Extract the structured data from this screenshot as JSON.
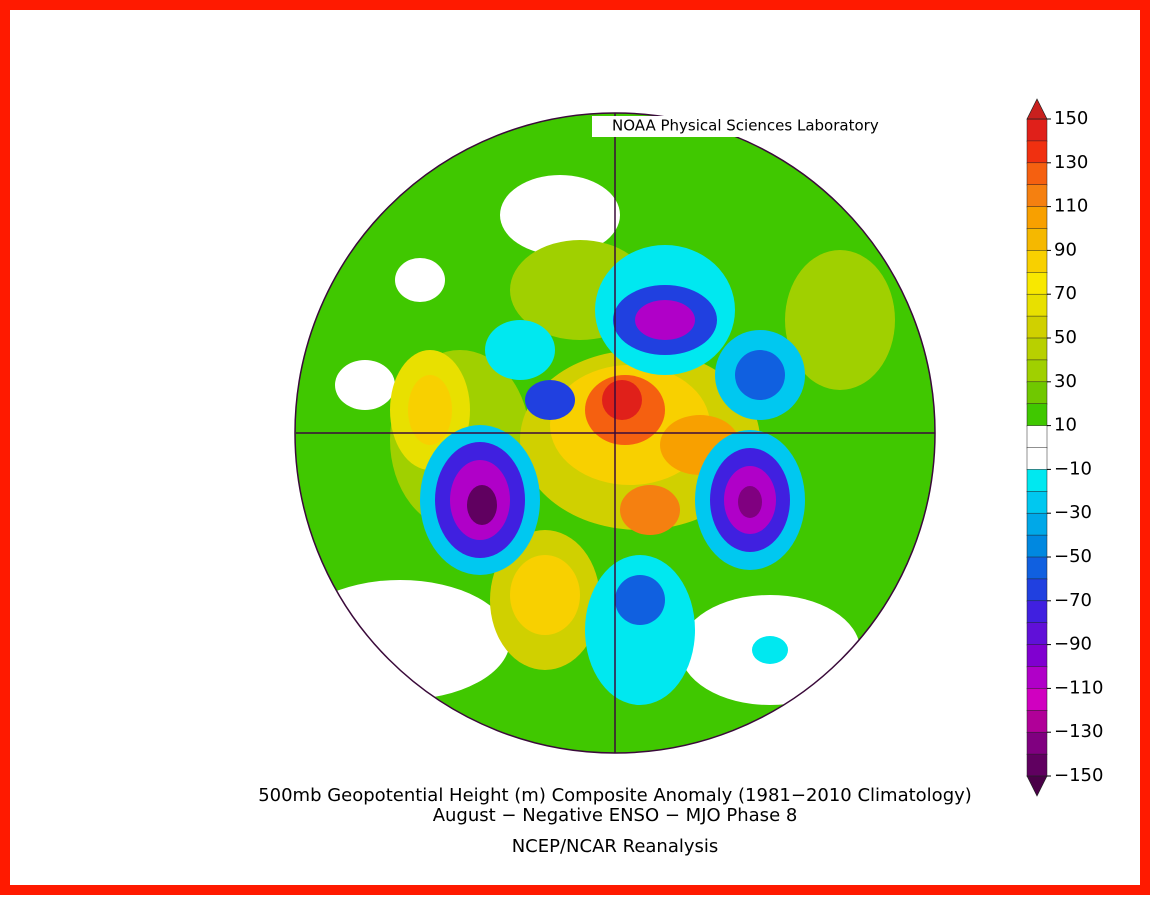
{
  "header": {
    "credit": "NOAA Physical Sciences Laboratory"
  },
  "colorbar": {
    "lim": [
      -150,
      150
    ],
    "ticks": [
      150,
      130,
      110,
      90,
      70,
      50,
      30,
      10,
      {
        "value": -10,
        "label": "−10"
      },
      {
        "value": -30,
        "label": "−30"
      },
      {
        "value": -50,
        "label": "−50"
      },
      {
        "value": -70,
        "label": "−70"
      },
      {
        "value": -90,
        "label": "−90"
      },
      {
        "value": -110,
        "label": "−110"
      },
      {
        "value": -130,
        "label": "−130"
      },
      {
        "value": -150,
        "label": "−150"
      }
    ],
    "over_color": "#c8201e",
    "under_color": "#4a0048",
    "colors": [
      "#e0201a",
      "#f03010",
      "#f56010",
      "#f58010",
      "#f8a000",
      "#f5b800",
      "#f8d000",
      "#f8e800",
      "#e8e000",
      "#d0d000",
      "#b8d000",
      "#a0d000",
      "#70c800",
      "#40c800",
      "#ffffff",
      "#ffffff",
      "#00e8f0",
      "#00c8f0",
      "#00a8e8",
      "#0088e0",
      "#1060e0",
      "#2040e0",
      "#4020e0",
      "#6010d8",
      "#8000d0",
      "#b000c8",
      "#d000c0",
      "#b00098",
      "#800080",
      "#600060"
    ]
  },
  "caption": {
    "line1": "500mb Geopotential Height (m) Composite Anomaly (1981−2010 Climatology)",
    "line2": "August − Negative ENSO − MJO Phase 8",
    "line3": "NCEP/NCAR Reanalysis"
  }
}
